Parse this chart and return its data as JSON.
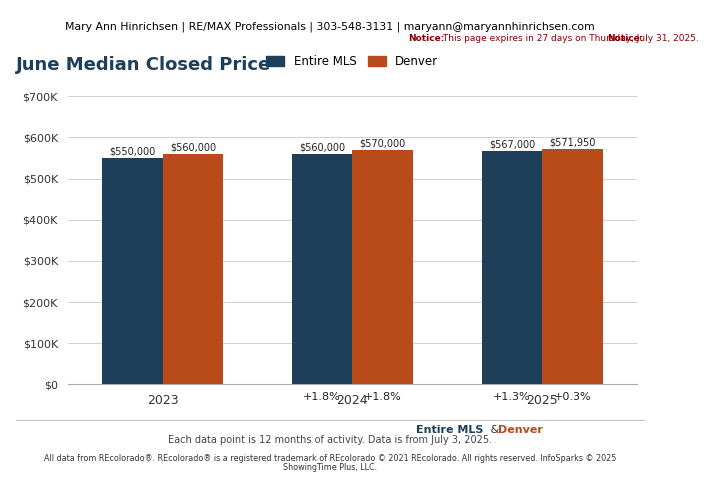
{
  "header_text": "Mary Ann Hinrichsen | RE/MAX Professionals | 303-548-3131 | maryann@maryannhinrichsen.com",
  "notice_bold": "Notice:",
  "notice_text": " This page expires in 27 days on Thursday, July 31, 2025.",
  "title": "June Median Closed Price",
  "years": [
    "2023",
    "2024",
    "2025"
  ],
  "mls_values": [
    550000,
    560000,
    567000
  ],
  "denver_values": [
    560000,
    570000,
    571950
  ],
  "mls_pct": [
    null,
    "+1.8%",
    "+1.3%"
  ],
  "denver_pct": [
    null,
    "+1.8%",
    "+0.3%"
  ],
  "mls_labels": [
    "$550,000",
    "$560,000",
    "$567,000"
  ],
  "denver_labels": [
    "$560,000",
    "$570,000",
    "$571,950"
  ],
  "color_mls": "#1e3f5a",
  "color_denver": "#b94a1a",
  "ylim_max": 700000,
  "ylabel_ticks": [
    0,
    100000,
    200000,
    300000,
    400000,
    500000,
    600000,
    700000
  ],
  "ylabel_labels": [
    "$0",
    "$100K",
    "$200K",
    "$300K",
    "$400K",
    "$500K",
    "$600K",
    "$700K"
  ],
  "legend_mls": "Entire MLS",
  "legend_denver": "Denver",
  "footer_mls": "Entire MLS",
  "footer_amp": " & ",
  "footer_denver": "Denver",
  "footer_data": "Each data point is 12 months of activity. Data is from July 3, 2025.",
  "footer_legal1": "All data from REcolorado®. REcolorado® is a registered trademark of REcolorado © 2021 REcolorado. All rights reserved. InfoSparks © 2025",
  "footer_legal2": "ShowingTime Plus, LLC.",
  "bar_width": 0.32
}
